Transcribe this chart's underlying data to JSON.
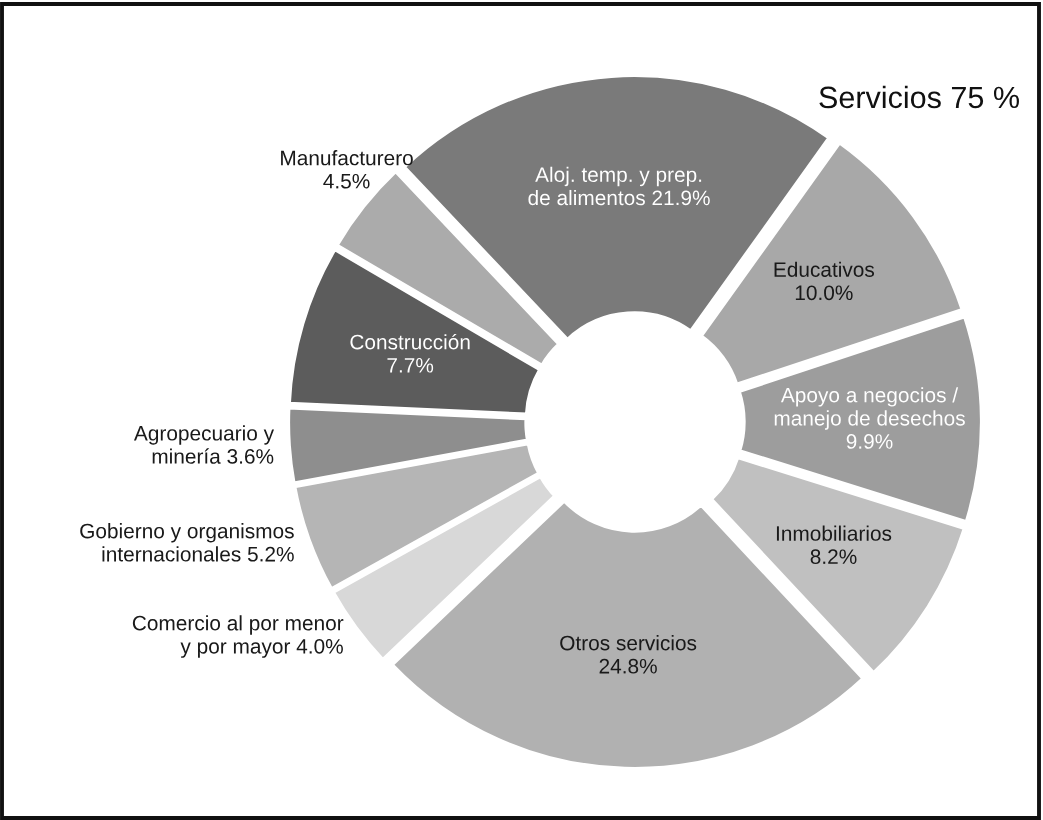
{
  "chart_data": {
    "type": "donut",
    "categories": [
      "Aloj. temp. y prep.\nde alimentos",
      "Educativos",
      "Apoyo a negocios /\nmanejo de desechos\n",
      "Inmobiliarios",
      "Otros servicios",
      "Comercio al por menor\ny por mayor",
      "Gobierno y organismos\ninternacionales",
      "Agropecuario y\nminería",
      "Construcción",
      "Manufacturero"
    ],
    "values": [
      21.9,
      10.0,
      9.9,
      8.2,
      24.8,
      4.0,
      5.2,
      3.6,
      7.7,
      4.5
    ],
    "colors": [
      "#7a7a7a",
      "#a8a8a8",
      "#9d9d9d",
      "#c0c0c0",
      "#b1b1b1",
      "#d8d8d8",
      "#b5b5b5",
      "#8e8e8e",
      "#5c5c5c",
      "#ababab"
    ],
    "value_labels": [
      "21.9%",
      "10.0%",
      "9.9%",
      "8.2%",
      "24.8%",
      "4.0%",
      "5.2%",
      "3.6%",
      "7.7%",
      "4.5%"
    ],
    "annotations": [
      "Servicios 75 %"
    ]
  }
}
